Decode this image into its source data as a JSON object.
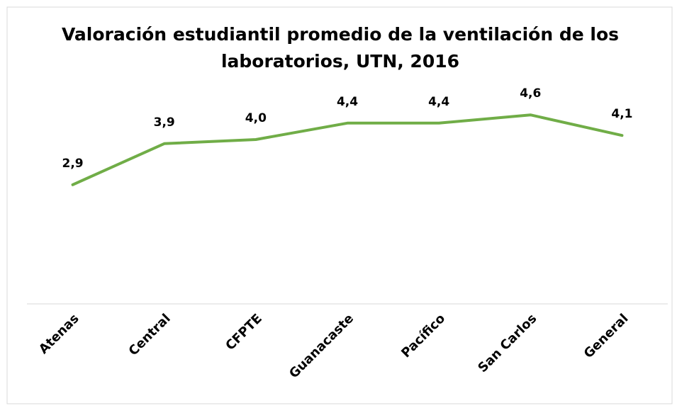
{
  "chart_data": {
    "type": "line",
    "title": "Valoración estudiantil promedio de la ventilación de los laboratorios, UTN, 2016",
    "categories": [
      "Atenas",
      "Central",
      "CFPTE",
      "Guanacaste",
      "Pacífico",
      "San Carlos",
      "General"
    ],
    "series": [
      {
        "name": "Valoración",
        "color": "#70ad47",
        "values": [
          2.9,
          3.9,
          4.0,
          4.4,
          4.4,
          4.6,
          4.1
        ],
        "value_labels": [
          "2,9",
          "3,9",
          "4,0",
          "4,4",
          "4,4",
          "4,6",
          "4,1"
        ]
      }
    ],
    "ylim": [
      0,
      6
    ]
  }
}
